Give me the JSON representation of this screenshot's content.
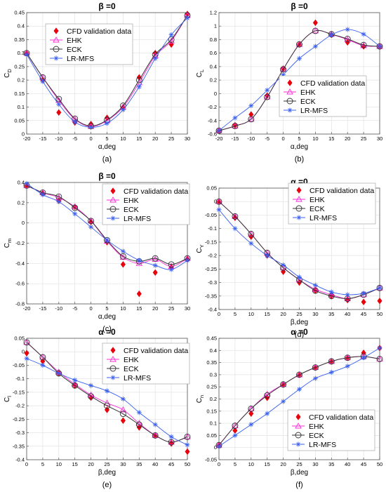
{
  "chart_data": [
    {
      "type": "line",
      "panel": "a",
      "title": "β =0",
      "xlabel": "α,deg",
      "ylabel": "C_D",
      "caption": "(a)",
      "xlim": [
        -20,
        30
      ],
      "ylim": [
        0,
        0.45
      ],
      "xticks": [
        -20,
        -15,
        -10,
        -5,
        0,
        5,
        10,
        15,
        20,
        25,
        30
      ],
      "yticks": [
        0,
        0.05,
        0.1,
        0.15,
        0.2,
        0.25,
        0.3,
        0.35,
        0.4,
        0.45
      ],
      "legend": "top-left",
      "grid": true,
      "series": [
        {
          "name": "CFD validation data",
          "x": [
            -20,
            -15,
            -10,
            -5,
            0,
            5,
            10,
            15,
            20,
            25,
            30
          ],
          "y": [
            0.3,
            0.2,
            0.08,
            0.043,
            0.037,
            0.06,
            0.1,
            0.21,
            0.3,
            0.332,
            0.445
          ]
        },
        {
          "name": "EHK",
          "x": [
            -20,
            -15,
            -10,
            -5,
            0,
            5,
            10,
            15,
            20,
            25,
            30
          ],
          "y": [
            0.3,
            0.21,
            0.125,
            0.055,
            0.028,
            0.05,
            0.1,
            0.19,
            0.29,
            0.345,
            0.44
          ]
        },
        {
          "name": "ECK",
          "x": [
            -20,
            -15,
            -10,
            -5,
            0,
            5,
            10,
            15,
            20,
            25,
            30
          ],
          "y": [
            0.3,
            0.21,
            0.13,
            0.057,
            0.03,
            0.052,
            0.105,
            0.2,
            0.295,
            0.35,
            0.44
          ]
        },
        {
          "name": "LR-MFS",
          "x": [
            -20,
            -15,
            -10,
            -5,
            0,
            5,
            10,
            15,
            20,
            25,
            30
          ],
          "y": [
            0.295,
            0.195,
            0.11,
            0.045,
            0.025,
            0.04,
            0.09,
            0.175,
            0.28,
            0.368,
            0.43
          ]
        }
      ]
    },
    {
      "type": "line",
      "panel": "b",
      "title": "β =0",
      "xlabel": "α,deg",
      "ylabel": "C_L",
      "caption": "(b)",
      "xlim": [
        -20,
        30
      ],
      "ylim": [
        -0.6,
        1.2
      ],
      "xticks": [
        -20,
        -15,
        -10,
        -5,
        0,
        5,
        10,
        15,
        20,
        25,
        30
      ],
      "yticks": [
        -0.6,
        -0.4,
        -0.2,
        0,
        0.2,
        0.4,
        0.6,
        0.8,
        1,
        1.2
      ],
      "legend": "right",
      "grid": true,
      "series": [
        {
          "name": "CFD validation data",
          "x": [
            -20,
            -15,
            -10,
            -5,
            0,
            5,
            10,
            15,
            20,
            25,
            30
          ],
          "y": [
            -0.55,
            -0.47,
            -0.31,
            -0.03,
            0.37,
            0.73,
            1.05,
            0.87,
            0.76,
            0.7,
            0.7
          ]
        },
        {
          "name": "EHK",
          "x": [
            -20,
            -15,
            -10,
            -5,
            0,
            5,
            10,
            15,
            20,
            25,
            30
          ],
          "y": [
            -0.55,
            -0.48,
            -0.38,
            -0.05,
            0.36,
            0.73,
            0.93,
            0.88,
            0.8,
            0.71,
            0.7
          ]
        },
        {
          "name": "ECK",
          "x": [
            -20,
            -15,
            -10,
            -5,
            0,
            5,
            10,
            15,
            20,
            25,
            30
          ],
          "y": [
            -0.55,
            -0.48,
            -0.38,
            -0.05,
            0.36,
            0.73,
            0.93,
            0.88,
            0.81,
            0.72,
            0.7
          ]
        },
        {
          "name": "LR-MFS",
          "x": [
            -20,
            -15,
            -10,
            -5,
            0,
            5,
            10,
            15,
            20,
            25,
            30
          ],
          "y": [
            -0.55,
            -0.36,
            -0.18,
            0.05,
            0.28,
            0.52,
            0.7,
            0.87,
            0.95,
            0.88,
            0.7
          ]
        }
      ]
    },
    {
      "type": "line",
      "panel": "c",
      "title": "β =0",
      "xlabel": "α,deg",
      "ylabel": "C_m",
      "caption": "(c)",
      "xlim": [
        -20,
        30
      ],
      "ylim": [
        -0.8,
        0.4
      ],
      "xticks": [
        -20,
        -15,
        -10,
        -5,
        0,
        5,
        10,
        15,
        20,
        25,
        30
      ],
      "yticks": [
        -0.8,
        -0.6,
        -0.4,
        -0.2,
        0,
        0.2,
        0.4
      ],
      "legend": "top-right",
      "grid": true,
      "series": [
        {
          "name": "CFD validation data",
          "x": [
            -20,
            -15,
            -10,
            -5,
            0,
            5,
            10,
            15,
            20,
            25,
            30
          ],
          "y": [
            0.37,
            0.29,
            0.22,
            0.16,
            0.01,
            -0.19,
            -0.41,
            -0.7,
            -0.49,
            -0.44,
            -0.36
          ]
        },
        {
          "name": "EHK",
          "x": [
            -20,
            -15,
            -10,
            -5,
            0,
            5,
            10,
            15,
            20,
            25,
            30
          ],
          "y": [
            0.37,
            0.3,
            0.25,
            0.16,
            0.02,
            -0.18,
            -0.34,
            -0.4,
            -0.36,
            -0.43,
            -0.35
          ]
        },
        {
          "name": "ECK",
          "x": [
            -20,
            -15,
            -10,
            -5,
            0,
            5,
            10,
            15,
            20,
            25,
            30
          ],
          "y": [
            0.37,
            0.3,
            0.26,
            0.15,
            0.02,
            -0.17,
            -0.33,
            -0.38,
            -0.35,
            -0.41,
            -0.35
          ]
        },
        {
          "name": "LR-MFS",
          "x": [
            -20,
            -15,
            -10,
            -5,
            0,
            5,
            10,
            15,
            20,
            25,
            30
          ],
          "y": [
            0.39,
            0.28,
            0.21,
            0.09,
            -0.04,
            -0.17,
            -0.28,
            -0.37,
            -0.42,
            -0.46,
            -0.37
          ]
        }
      ]
    },
    {
      "type": "line",
      "panel": "d",
      "title": "α =0",
      "xlabel": "β,deg",
      "ylabel": "C_Y",
      "caption": "(d)",
      "xlim": [
        0,
        50
      ],
      "ylim": [
        -0.4,
        0.05
      ],
      "xticks": [
        0,
        5,
        10,
        15,
        20,
        25,
        30,
        35,
        40,
        45,
        50
      ],
      "yticks": [
        -0.4,
        -0.35,
        -0.3,
        -0.25,
        -0.2,
        -0.15,
        -0.1,
        -0.05,
        0,
        0.05
      ],
      "legend": "top-right",
      "grid": true,
      "series": [
        {
          "name": "CFD validation data",
          "x": [
            0,
            5,
            10,
            15,
            20,
            25,
            30,
            35,
            40,
            45,
            50
          ],
          "y": [
            0,
            -0.06,
            -0.13,
            -0.2,
            -0.26,
            -0.3,
            -0.33,
            -0.35,
            -0.365,
            -0.372,
            -0.368
          ]
        },
        {
          "name": "EHK",
          "x": [
            0,
            5,
            10,
            15,
            20,
            25,
            30,
            35,
            40,
            45,
            50
          ],
          "y": [
            0,
            -0.055,
            -0.12,
            -0.19,
            -0.245,
            -0.29,
            -0.325,
            -0.345,
            -0.36,
            -0.345,
            -0.32
          ]
        },
        {
          "name": "ECK",
          "x": [
            0,
            5,
            10,
            15,
            20,
            25,
            30,
            35,
            40,
            45,
            50
          ],
          "y": [
            0,
            -0.055,
            -0.12,
            -0.19,
            -0.245,
            -0.29,
            -0.33,
            -0.35,
            -0.36,
            -0.345,
            -0.32
          ]
        },
        {
          "name": "LR-MFS",
          "x": [
            0,
            5,
            10,
            15,
            20,
            25,
            30,
            35,
            40,
            45,
            50
          ],
          "y": [
            -0.03,
            -0.1,
            -0.155,
            -0.2,
            -0.235,
            -0.28,
            -0.31,
            -0.335,
            -0.345,
            -0.34,
            -0.32
          ]
        }
      ]
    },
    {
      "type": "line",
      "panel": "e",
      "title": "α =0",
      "xlabel": "β,deg",
      "ylabel": "C_l",
      "caption": "(e)",
      "xlim": [
        0,
        50
      ],
      "ylim": [
        -0.4,
        0.05
      ],
      "xticks": [
        0,
        5,
        10,
        15,
        20,
        25,
        30,
        35,
        40,
        45,
        50
      ],
      "yticks": [
        -0.4,
        -0.35,
        -0.3,
        -0.25,
        -0.2,
        -0.15,
        -0.1,
        -0.05,
        0,
        0.05
      ],
      "legend": "top-right",
      "grid": true,
      "series": [
        {
          "name": "CFD validation data",
          "x": [
            0,
            5,
            10,
            15,
            20,
            25,
            30,
            35,
            40,
            45,
            50
          ],
          "y": [
            -0.005,
            -0.035,
            -0.08,
            -0.125,
            -0.17,
            -0.215,
            -0.255,
            -0.28,
            -0.31,
            -0.34,
            -0.37
          ]
        },
        {
          "name": "EHK",
          "x": [
            0,
            5,
            10,
            15,
            20,
            25,
            30,
            35,
            40,
            45,
            50
          ],
          "y": [
            0.035,
            -0.02,
            -0.075,
            -0.12,
            -0.16,
            -0.19,
            -0.215,
            -0.265,
            -0.31,
            -0.335,
            -0.315
          ]
        },
        {
          "name": "ECK",
          "x": [
            0,
            5,
            10,
            15,
            20,
            25,
            30,
            35,
            40,
            45,
            50
          ],
          "y": [
            0.035,
            -0.02,
            -0.08,
            -0.125,
            -0.165,
            -0.2,
            -0.23,
            -0.27,
            -0.31,
            -0.335,
            -0.315
          ]
        },
        {
          "name": "LR-MFS",
          "x": [
            0,
            5,
            10,
            15,
            20,
            25,
            30,
            35,
            40,
            45,
            50
          ],
          "y": [
            -0.025,
            -0.05,
            -0.08,
            -0.105,
            -0.125,
            -0.145,
            -0.175,
            -0.225,
            -0.27,
            -0.315,
            -0.345
          ]
        }
      ]
    },
    {
      "type": "line",
      "panel": "f",
      "title": "α =0",
      "xlabel": "β,deg",
      "ylabel": "C_n",
      "caption": "(f)",
      "xlim": [
        0,
        50
      ],
      "ylim": [
        -0.05,
        0.45
      ],
      "xticks": [
        0,
        5,
        10,
        15,
        20,
        25,
        30,
        35,
        40,
        45,
        50
      ],
      "yticks": [
        -0.05,
        0,
        0.05,
        0.1,
        0.15,
        0.2,
        0.25,
        0.3,
        0.35,
        0.4,
        0.45
      ],
      "legend": "bottom-right",
      "grid": true,
      "series": [
        {
          "name": "CFD validation data",
          "x": [
            0,
            5,
            10,
            15,
            20,
            25,
            30,
            35,
            40,
            45,
            50
          ],
          "y": [
            0.01,
            0.07,
            0.14,
            0.205,
            0.26,
            0.3,
            0.33,
            0.355,
            0.37,
            0.39,
            0.41
          ]
        },
        {
          "name": "EHK",
          "x": [
            0,
            5,
            10,
            15,
            20,
            25,
            30,
            35,
            40,
            45,
            50
          ],
          "y": [
            0.01,
            0.09,
            0.16,
            0.22,
            0.26,
            0.3,
            0.33,
            0.355,
            0.37,
            0.375,
            0.365
          ]
        },
        {
          "name": "ECK",
          "x": [
            0,
            5,
            10,
            15,
            20,
            25,
            30,
            35,
            40,
            45,
            50
          ],
          "y": [
            0.01,
            0.09,
            0.16,
            0.215,
            0.26,
            0.3,
            0.33,
            0.355,
            0.37,
            0.375,
            0.365
          ]
        },
        {
          "name": "LR-MFS",
          "x": [
            0,
            5,
            10,
            15,
            20,
            25,
            30,
            35,
            40,
            45,
            50
          ],
          "y": [
            0.005,
            0.05,
            0.095,
            0.14,
            0.19,
            0.24,
            0.285,
            0.31,
            0.335,
            0.37,
            0.41
          ]
        }
      ]
    }
  ],
  "styles": {
    "series_colors": [
      "#e8000b",
      "#ff2bd6",
      "#333333",
      "#3a5ff0"
    ],
    "series_markers": [
      "diamond",
      "triangle",
      "circle",
      "star"
    ],
    "grid_color": "#e2e2e2"
  }
}
